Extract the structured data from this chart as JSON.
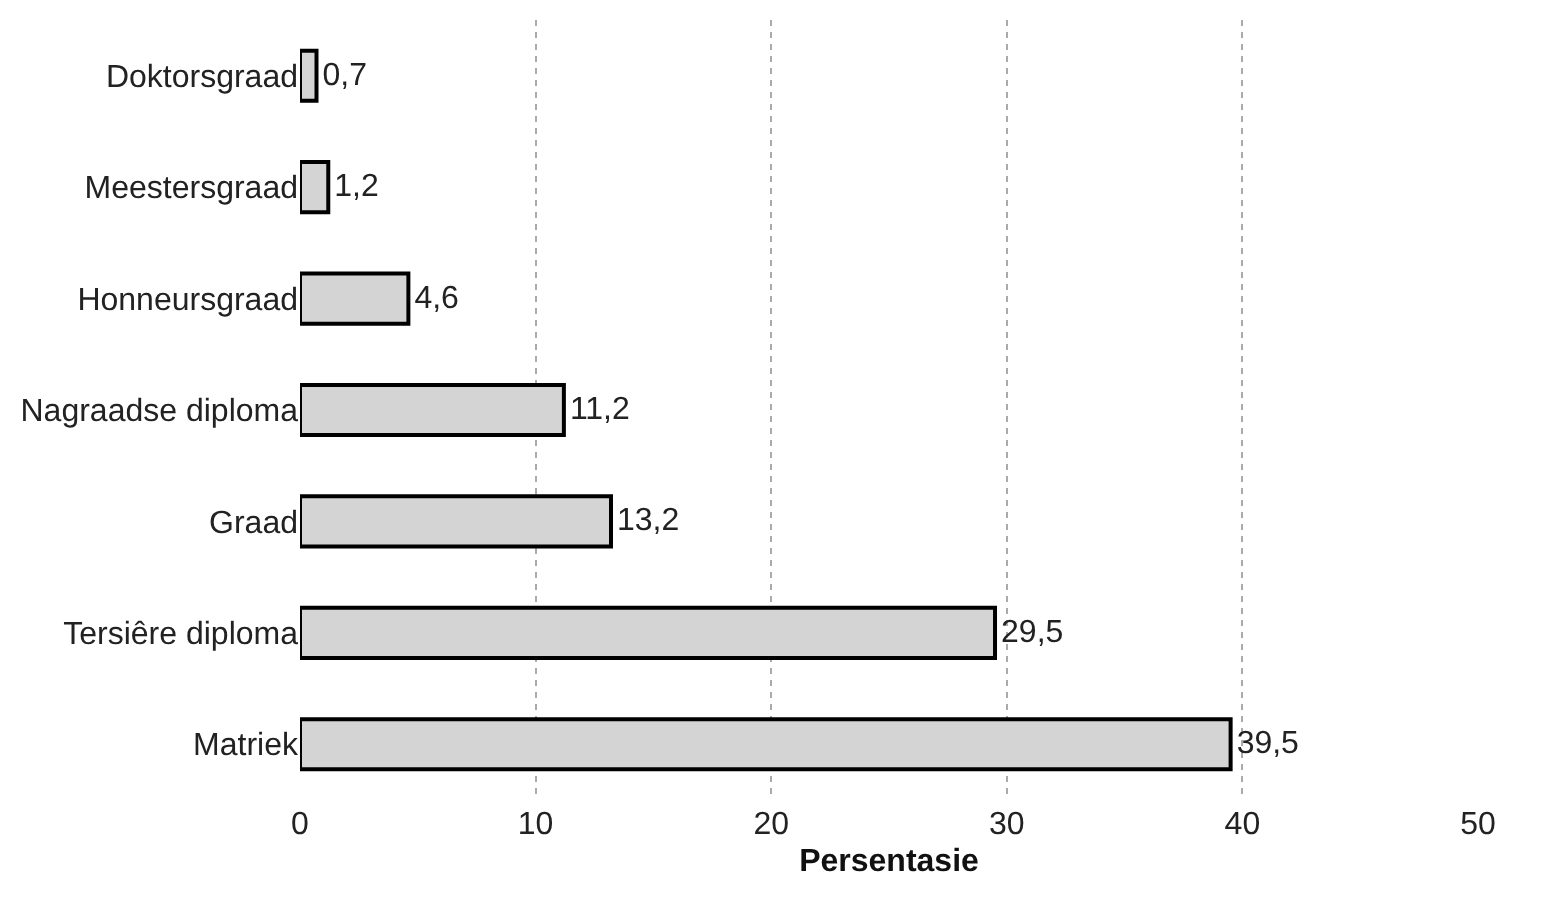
{
  "chart_data": {
    "type": "bar",
    "orientation": "horizontal",
    "xlabel": "Persentasie",
    "categories": [
      "Doktorsgraad",
      "Meestersgraad",
      "Honneursgraad",
      "Nagraadse diploma",
      "Graad",
      "Tersiêre diploma",
      "Matriek"
    ],
    "values": [
      0.7,
      1.2,
      4.6,
      11.2,
      13.2,
      29.5,
      39.5
    ],
    "value_labels": [
      "0,7",
      "1,2",
      "4,6",
      "11,2",
      "13,2",
      "29,5",
      "39,5"
    ],
    "color": "#d4d4d4",
    "xlim": [
      0,
      50
    ],
    "xticks": [
      0,
      10,
      20,
      30,
      40,
      50
    ],
    "grid": "x",
    "legend": false
  }
}
